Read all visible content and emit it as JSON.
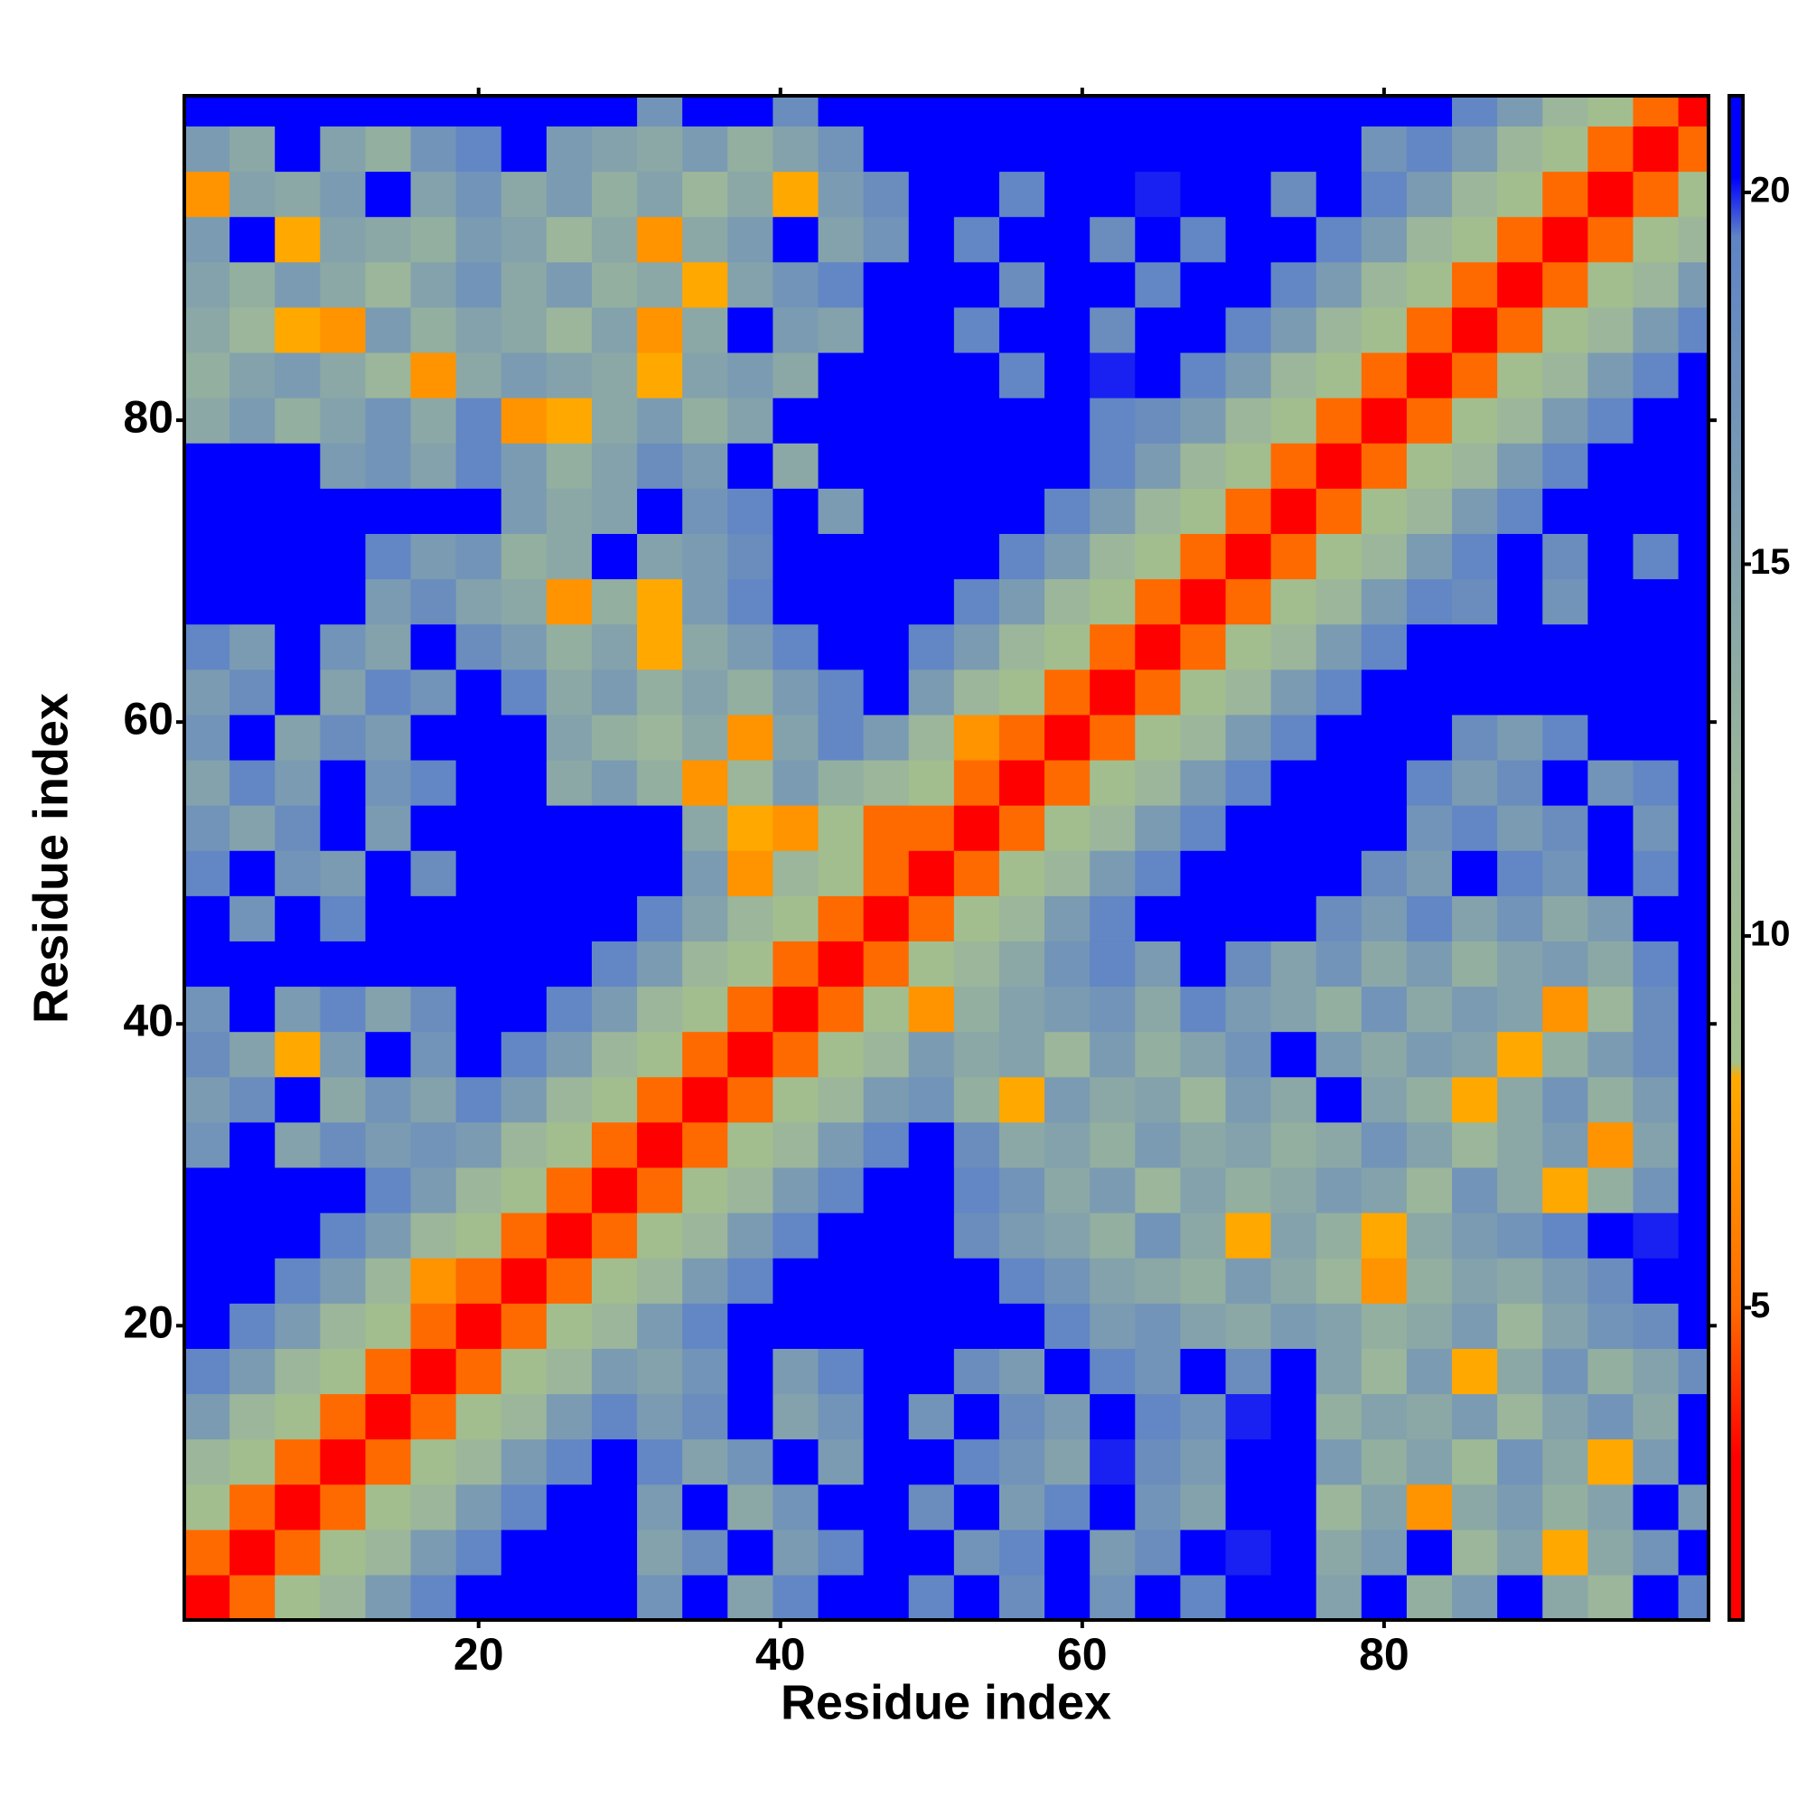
{
  "chart_data": {
    "type": "heatmap",
    "xlabel": "Residue index",
    "ylabel": "Residue index",
    "x": [
      2,
      5,
      8,
      11,
      14,
      17,
      20,
      23,
      26,
      29,
      32,
      35,
      38,
      41,
      44,
      47,
      50,
      53,
      56,
      59,
      62,
      65,
      68,
      71,
      74,
      77,
      80,
      83,
      86,
      89,
      92,
      95,
      98,
      101
    ],
    "y": [
      2,
      5,
      8,
      11,
      14,
      17,
      20,
      23,
      26,
      29,
      32,
      35,
      38,
      41,
      44,
      47,
      50,
      53,
      56,
      59,
      62,
      65,
      68,
      71,
      74,
      77,
      80,
      83,
      86,
      89,
      92,
      95,
      98,
      101
    ],
    "z": [
      [
        2,
        5,
        9,
        12,
        16,
        19,
        21,
        21,
        21,
        21,
        17,
        21,
        15,
        19,
        21,
        21,
        19,
        21,
        18,
        21,
        17,
        21,
        19,
        21,
        21,
        15,
        21,
        13,
        16,
        21,
        14,
        12,
        21,
        19
      ],
      [
        5,
        2,
        5,
        9,
        12,
        16,
        19,
        21,
        21,
        21,
        15,
        18,
        21,
        16,
        19,
        21,
        21,
        17,
        19,
        21,
        16,
        18,
        21,
        20,
        21,
        14,
        16,
        21,
        12,
        15,
        8,
        14,
        17,
        21
      ],
      [
        9,
        5,
        2,
        5,
        9,
        12,
        16,
        19,
        21,
        21,
        16,
        21,
        14,
        17,
        21,
        21,
        18,
        21,
        16,
        19,
        21,
        17,
        15,
        21,
        21,
        12,
        15,
        7,
        14,
        16,
        13,
        15,
        21,
        16
      ],
      [
        12,
        9,
        5,
        2,
        5,
        9,
        12,
        16,
        19,
        21,
        19,
        15,
        17,
        21,
        16,
        21,
        21,
        19,
        17,
        15,
        20,
        18,
        16,
        21,
        21,
        16,
        13,
        15,
        11,
        17,
        14,
        8,
        16,
        21
      ],
      [
        16,
        12,
        9,
        5,
        2,
        5,
        9,
        12,
        16,
        19,
        16,
        18,
        21,
        15,
        17,
        21,
        17,
        21,
        18,
        16,
        21,
        19,
        17,
        20,
        21,
        13,
        15,
        14,
        16,
        12,
        15,
        17,
        14,
        21
      ],
      [
        19,
        16,
        12,
        9,
        5,
        2,
        5,
        9,
        12,
        16,
        15,
        17,
        21,
        16,
        19,
        21,
        21,
        18,
        16,
        21,
        19,
        17,
        21,
        18,
        21,
        15,
        12,
        16,
        8,
        14,
        17,
        13,
        15,
        18
      ],
      [
        21,
        19,
        16,
        12,
        9,
        5,
        2,
        5,
        9,
        12,
        16,
        19,
        21,
        21,
        21,
        21,
        21,
        21,
        21,
        19,
        16,
        17,
        15,
        14,
        16,
        15,
        13,
        14,
        16,
        12,
        15,
        17,
        18,
        21
      ],
      [
        21,
        21,
        19,
        16,
        12,
        7,
        5,
        2,
        5,
        9,
        12,
        16,
        19,
        21,
        21,
        21,
        21,
        21,
        19,
        17,
        15,
        14,
        13,
        16,
        14,
        12,
        7,
        13,
        15,
        14,
        16,
        18,
        21,
        21
      ],
      [
        21,
        21,
        21,
        19,
        16,
        12,
        9,
        5,
        2,
        5,
        9,
        12,
        16,
        19,
        21,
        21,
        21,
        18,
        16,
        15,
        13,
        17,
        14,
        8,
        15,
        13,
        8,
        14,
        16,
        17,
        19,
        21,
        20,
        21
      ],
      [
        21,
        21,
        21,
        21,
        19,
        16,
        12,
        9,
        5,
        2,
        5,
        9,
        12,
        16,
        19,
        21,
        21,
        19,
        17,
        14,
        16,
        12,
        15,
        13,
        14,
        16,
        15,
        12,
        17,
        14,
        8,
        13,
        17,
        21
      ],
      [
        17,
        21,
        15,
        18,
        16,
        17,
        16,
        12,
        9,
        5,
        2,
        5,
        9,
        12,
        16,
        19,
        21,
        18,
        14,
        15,
        13,
        16,
        14,
        15,
        13,
        14,
        17,
        15,
        12,
        14,
        16,
        7,
        15,
        21
      ],
      [
        16,
        18,
        21,
        14,
        17,
        15,
        19,
        16,
        12,
        9,
        5,
        2,
        5,
        9,
        12,
        16,
        17,
        13,
        8,
        16,
        14,
        15,
        12,
        16,
        14,
        21,
        15,
        13,
        8,
        14,
        17,
        13,
        16,
        21
      ],
      [
        18,
        15,
        8,
        16,
        21,
        17,
        21,
        19,
        16,
        12,
        9,
        5,
        2,
        5,
        9,
        12,
        16,
        14,
        15,
        12,
        16,
        13,
        15,
        17,
        21,
        16,
        14,
        16,
        15,
        8,
        13,
        16,
        18,
        21
      ],
      [
        17,
        21,
        16,
        19,
        15,
        18,
        21,
        21,
        19,
        16,
        12,
        9,
        5,
        2,
        5,
        9,
        7,
        13,
        15,
        16,
        17,
        14,
        19,
        16,
        15,
        13,
        17,
        14,
        16,
        15,
        7,
        12,
        18,
        21
      ],
      [
        21,
        21,
        21,
        21,
        21,
        21,
        21,
        21,
        21,
        19,
        16,
        12,
        9,
        5,
        2,
        5,
        9,
        12,
        14,
        17,
        19,
        16,
        21,
        18,
        15,
        17,
        14,
        16,
        13,
        15,
        16,
        14,
        19,
        21
      ],
      [
        21,
        17,
        21,
        19,
        21,
        21,
        21,
        21,
        21,
        21,
        19,
        15,
        12,
        9,
        5,
        2,
        5,
        9,
        12,
        16,
        19,
        21,
        21,
        21,
        21,
        18,
        16,
        19,
        15,
        17,
        14,
        16,
        21,
        21
      ],
      [
        19,
        21,
        17,
        16,
        21,
        18,
        21,
        21,
        21,
        21,
        21,
        16,
        7,
        12,
        9,
        5,
        2,
        5,
        9,
        12,
        16,
        19,
        21,
        21,
        21,
        21,
        18,
        16,
        21,
        19,
        17,
        21,
        19,
        21
      ],
      [
        17,
        15,
        18,
        21,
        16,
        21,
        21,
        21,
        21,
        21,
        21,
        14,
        8,
        7,
        9,
        5,
        5,
        2,
        5,
        9,
        12,
        16,
        19,
        21,
        21,
        21,
        21,
        17,
        19,
        16,
        18,
        21,
        17,
        21
      ],
      [
        15,
        19,
        16,
        21,
        17,
        19,
        21,
        21,
        14,
        16,
        13,
        7,
        12,
        16,
        13,
        12,
        9,
        5,
        2,
        5,
        9,
        12,
        16,
        19,
        21,
        21,
        21,
        19,
        16,
        18,
        21,
        17,
        19,
        21
      ],
      [
        17,
        21,
        15,
        18,
        16,
        21,
        21,
        21,
        15,
        13,
        12,
        14,
        7,
        15,
        19,
        16,
        12,
        7,
        5,
        2,
        5,
        9,
        12,
        16,
        19,
        21,
        21,
        21,
        18,
        16,
        19,
        21,
        21,
        21
      ],
      [
        16,
        18,
        21,
        15,
        19,
        17,
        21,
        19,
        14,
        16,
        13,
        15,
        13,
        16,
        19,
        21,
        16,
        12,
        9,
        5,
        2,
        5,
        9,
        12,
        16,
        19,
        21,
        21,
        21,
        21,
        21,
        21,
        21,
        21
      ],
      [
        19,
        16,
        21,
        17,
        15,
        21,
        18,
        16,
        13,
        15,
        8,
        14,
        16,
        19,
        21,
        21,
        19,
        16,
        12,
        9,
        5,
        2,
        5,
        9,
        12,
        16,
        19,
        21,
        21,
        21,
        21,
        21,
        21,
        21
      ],
      [
        21,
        21,
        21,
        21,
        16,
        18,
        15,
        14,
        7,
        13,
        8,
        16,
        19,
        21,
        21,
        21,
        21,
        19,
        16,
        12,
        9,
        5,
        2,
        5,
        9,
        12,
        16,
        19,
        18,
        21,
        17,
        21,
        21,
        21
      ],
      [
        21,
        21,
        21,
        21,
        19,
        16,
        17,
        13,
        14,
        21,
        15,
        16,
        18,
        21,
        21,
        21,
        21,
        21,
        19,
        16,
        12,
        9,
        5,
        2,
        5,
        9,
        12,
        16,
        19,
        21,
        18,
        21,
        19,
        21
      ],
      [
        21,
        21,
        21,
        21,
        21,
        21,
        21,
        16,
        14,
        15,
        21,
        17,
        19,
        21,
        16,
        21,
        21,
        21,
        21,
        19,
        16,
        12,
        9,
        5,
        2,
        5,
        9,
        12,
        16,
        19,
        21,
        21,
        21,
        21
      ],
      [
        21,
        21,
        21,
        16,
        17,
        15,
        19,
        16,
        13,
        15,
        18,
        16,
        21,
        14,
        21,
        21,
        21,
        21,
        21,
        21,
        19,
        16,
        12,
        9,
        5,
        2,
        5,
        9,
        12,
        16,
        19,
        21,
        21,
        21
      ],
      [
        14,
        16,
        13,
        15,
        17,
        14,
        19,
        7,
        8,
        14,
        16,
        13,
        15,
        21,
        21,
        21,
        21,
        21,
        21,
        21,
        19,
        18,
        16,
        12,
        9,
        5,
        2,
        5,
        9,
        12,
        16,
        19,
        21,
        21
      ],
      [
        13,
        15,
        16,
        14,
        12,
        7,
        14,
        16,
        15,
        14,
        8,
        15,
        16,
        14,
        21,
        21,
        21,
        21,
        19,
        21,
        20,
        21,
        19,
        16,
        12,
        9,
        5,
        2,
        5,
        9,
        12,
        16,
        19,
        21
      ],
      [
        14,
        12,
        8,
        7,
        16,
        13,
        15,
        14,
        12,
        15,
        7,
        14,
        21,
        16,
        15,
        21,
        21,
        19,
        21,
        21,
        18,
        21,
        21,
        19,
        16,
        12,
        9,
        5,
        2,
        5,
        9,
        12,
        16,
        19
      ],
      [
        15,
        13,
        16,
        14,
        12,
        15,
        17,
        14,
        16,
        13,
        14,
        8,
        15,
        17,
        19,
        21,
        21,
        21,
        18,
        21,
        21,
        19,
        21,
        21,
        19,
        16,
        12,
        9,
        5,
        2,
        5,
        9,
        12,
        16
      ],
      [
        16,
        21,
        8,
        15,
        14,
        13,
        16,
        15,
        12,
        14,
        7,
        14,
        16,
        21,
        15,
        17,
        21,
        19,
        21,
        21,
        18,
        21,
        19,
        21,
        21,
        19,
        16,
        12,
        9,
        5,
        2,
        5,
        9,
        12
      ],
      [
        7,
        15,
        14,
        16,
        21,
        15,
        17,
        14,
        16,
        13,
        15,
        12,
        14,
        8,
        16,
        18,
        21,
        21,
        19,
        21,
        21,
        20,
        21,
        21,
        18,
        21,
        19,
        16,
        12,
        9,
        5,
        2,
        5,
        9
      ],
      [
        16,
        14,
        21,
        15,
        13,
        17,
        19,
        21,
        16,
        15,
        14,
        16,
        13,
        15,
        17,
        21,
        21,
        21,
        21,
        21,
        21,
        21,
        21,
        21,
        21,
        21,
        17,
        19,
        16,
        12,
        9,
        5,
        2,
        5
      ],
      [
        21,
        21,
        21,
        21,
        21,
        21,
        21,
        21,
        21,
        21,
        17,
        21,
        21,
        18,
        21,
        21,
        21,
        21,
        21,
        21,
        21,
        21,
        21,
        21,
        21,
        21,
        21,
        21,
        19,
        16,
        12,
        9,
        5,
        2
      ]
    ],
    "xlim": [
      0.5,
      101.5
    ],
    "ylim": [
      0.5,
      101.5
    ],
    "xticks": [
      20,
      40,
      60,
      80
    ],
    "yticks": [
      20,
      40,
      60,
      80
    ],
    "zlim": [
      0.8,
      21.3
    ],
    "zticks": [
      5,
      10,
      15,
      20
    ],
    "colorscale": [
      [
        0.8,
        "#ff0000"
      ],
      [
        3,
        "#ff0000"
      ],
      [
        5,
        "#ff6a00"
      ],
      [
        8.1,
        "#ffaa00"
      ],
      [
        8.3,
        "#a4c08c"
      ],
      [
        12,
        "#9bb69a"
      ],
      [
        19.4,
        "#5f84c6"
      ],
      [
        20.2,
        "#0000ff"
      ],
      [
        21.3,
        "#0000ff"
      ]
    ]
  }
}
